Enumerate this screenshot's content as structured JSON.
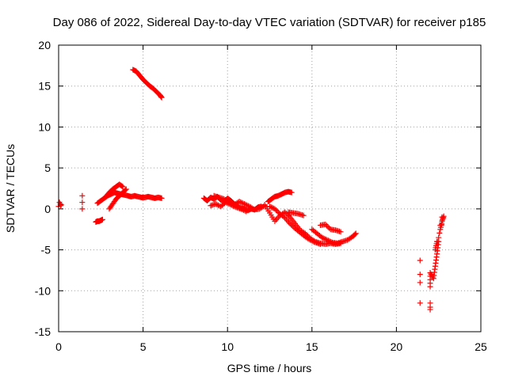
{
  "chart_data": {
    "type": "scatter",
    "title": "Day 086 of 2022, Sidereal Day-to-day VTEC variation (SDTVAR) for receiver p185",
    "xlabel": "GPS time / hours",
    "ylabel": "SDTVAR / TECUs",
    "xlim": [
      0,
      25
    ],
    "ylim": [
      -15,
      20
    ],
    "xticks": [
      0,
      5,
      10,
      15,
      20,
      25
    ],
    "yticks": [
      -15,
      -10,
      -5,
      0,
      5,
      10,
      15,
      20
    ],
    "grid": true,
    "marker": "+",
    "color": "#ff0000",
    "series": [
      {
        "name": "SDTVAR",
        "x": [
          0.0,
          0.05,
          0.1,
          0.12,
          0.15,
          1.4,
          1.4,
          1.4,
          2.2,
          2.3,
          2.4,
          2.5,
          2.6,
          2.3,
          2.5,
          2.7,
          2.9,
          3.1,
          3.3,
          3.5,
          3.7,
          3.9,
          4.1,
          4.3,
          4.5,
          4.7,
          4.9,
          5.1,
          5.3,
          5.5,
          5.7,
          5.9,
          6.1,
          3.0,
          3.2,
          3.4,
          3.6,
          3.8,
          4.0,
          2.8,
          3.0,
          3.2,
          3.4,
          3.6,
          3.8,
          4.4,
          4.6,
          4.8,
          5.0,
          5.2,
          5.4,
          5.6,
          5.8,
          6.0,
          6.1,
          8.6,
          8.8,
          9.0,
          9.2,
          9.4,
          9.6,
          9.8,
          10.0,
          10.2,
          10.4,
          10.6,
          10.8,
          11.0,
          11.2,
          11.4,
          11.6,
          11.8,
          12.0,
          9.0,
          9.3,
          9.6,
          9.9,
          10.2,
          10.5,
          10.8,
          11.1,
          9.2,
          9.5,
          9.8,
          10.1,
          10.4,
          10.7,
          11.0,
          11.3,
          11.6,
          11.9,
          12.2,
          12.4,
          12.6,
          12.8,
          13.0,
          13.2,
          13.4,
          13.6,
          13.8,
          12.2,
          12.5,
          12.8,
          13.1,
          13.4,
          13.7,
          14.0,
          14.3,
          14.6,
          14.9,
          15.2,
          15.5,
          15.8,
          16.1,
          16.4,
          16.7,
          12.5,
          12.8,
          13.1,
          13.4,
          13.7,
          14.0,
          14.3,
          14.6,
          14.9,
          15.2,
          15.5,
          13.6,
          13.9,
          14.2,
          14.5,
          15.0,
          15.3,
          15.6,
          15.9,
          16.2,
          16.5,
          16.8,
          17.1,
          17.4,
          17.6,
          15.5,
          15.8,
          16.1,
          16.4,
          16.7,
          21.4,
          21.4,
          21.4,
          21.4,
          22.0,
          22.0,
          22.0,
          22.0,
          22.0,
          22.2,
          22.3,
          22.4,
          22.5,
          22.6,
          22.7,
          22.8,
          22.3,
          22.4,
          22.5,
          22.6,
          22.7
        ],
        "y": [
          0.3,
          0.8,
          0.6,
          0.4,
          0.5,
          1.6,
          0.8,
          0.0,
          -1.6,
          -1.5,
          -1.5,
          -1.4,
          -1.3,
          0.7,
          1.0,
          1.3,
          1.6,
          1.8,
          2.0,
          1.9,
          1.8,
          1.7,
          1.6,
          1.5,
          1.6,
          1.5,
          1.4,
          1.4,
          1.5,
          1.4,
          1.3,
          1.4,
          1.3,
          0.0,
          0.6,
          1.2,
          1.6,
          2.0,
          2.4,
          1.5,
          2.0,
          2.4,
          2.7,
          3.0,
          2.7,
          17.0,
          16.8,
          16.3,
          15.8,
          15.4,
          15.0,
          14.7,
          14.3,
          13.9,
          13.6,
          1.3,
          1.0,
          1.4,
          1.2,
          1.5,
          1.1,
          0.9,
          1.3,
          1.0,
          0.6,
          0.3,
          0.1,
          0.0,
          -0.2,
          0.0,
          -0.1,
          0.2,
          0.3,
          0.4,
          0.6,
          0.3,
          0.8,
          0.5,
          0.2,
          0.0,
          -0.3,
          1.6,
          1.4,
          1.2,
          0.8,
          0.5,
          0.9,
          0.6,
          0.3,
          -0.1,
          0.0,
          0.4,
          0.9,
          1.2,
          1.5,
          1.6,
          1.8,
          2.0,
          2.1,
          2.0,
          0.5,
          -0.5,
          -1.5,
          -0.8,
          -0.4,
          -1.0,
          -1.8,
          -2.6,
          -3.0,
          -3.6,
          -4.0,
          -4.2,
          -4.3,
          -4.2,
          -4.3,
          -4.2,
          0.3,
          0.0,
          -0.6,
          -1.1,
          -1.8,
          -2.4,
          -2.9,
          -3.4,
          -3.8,
          -4.1,
          -4.3,
          -0.4,
          -0.5,
          -0.6,
          -0.8,
          -2.5,
          -3.0,
          -3.5,
          -3.8,
          -4.1,
          -4.2,
          -4.0,
          -3.8,
          -3.4,
          -3.0,
          -2.0,
          -1.9,
          -2.5,
          -2.6,
          -2.8,
          -6.3,
          -8.0,
          -9.0,
          -11.5,
          -11.5,
          -12.0,
          -12.3,
          -9.5,
          -7.8,
          -8.5,
          -7.0,
          -5.5,
          -4.0,
          -2.5,
          -1.5,
          -0.9,
          -5.0,
          -4.0,
          -3.5,
          -2.0,
          -1.0
        ]
      }
    ]
  }
}
